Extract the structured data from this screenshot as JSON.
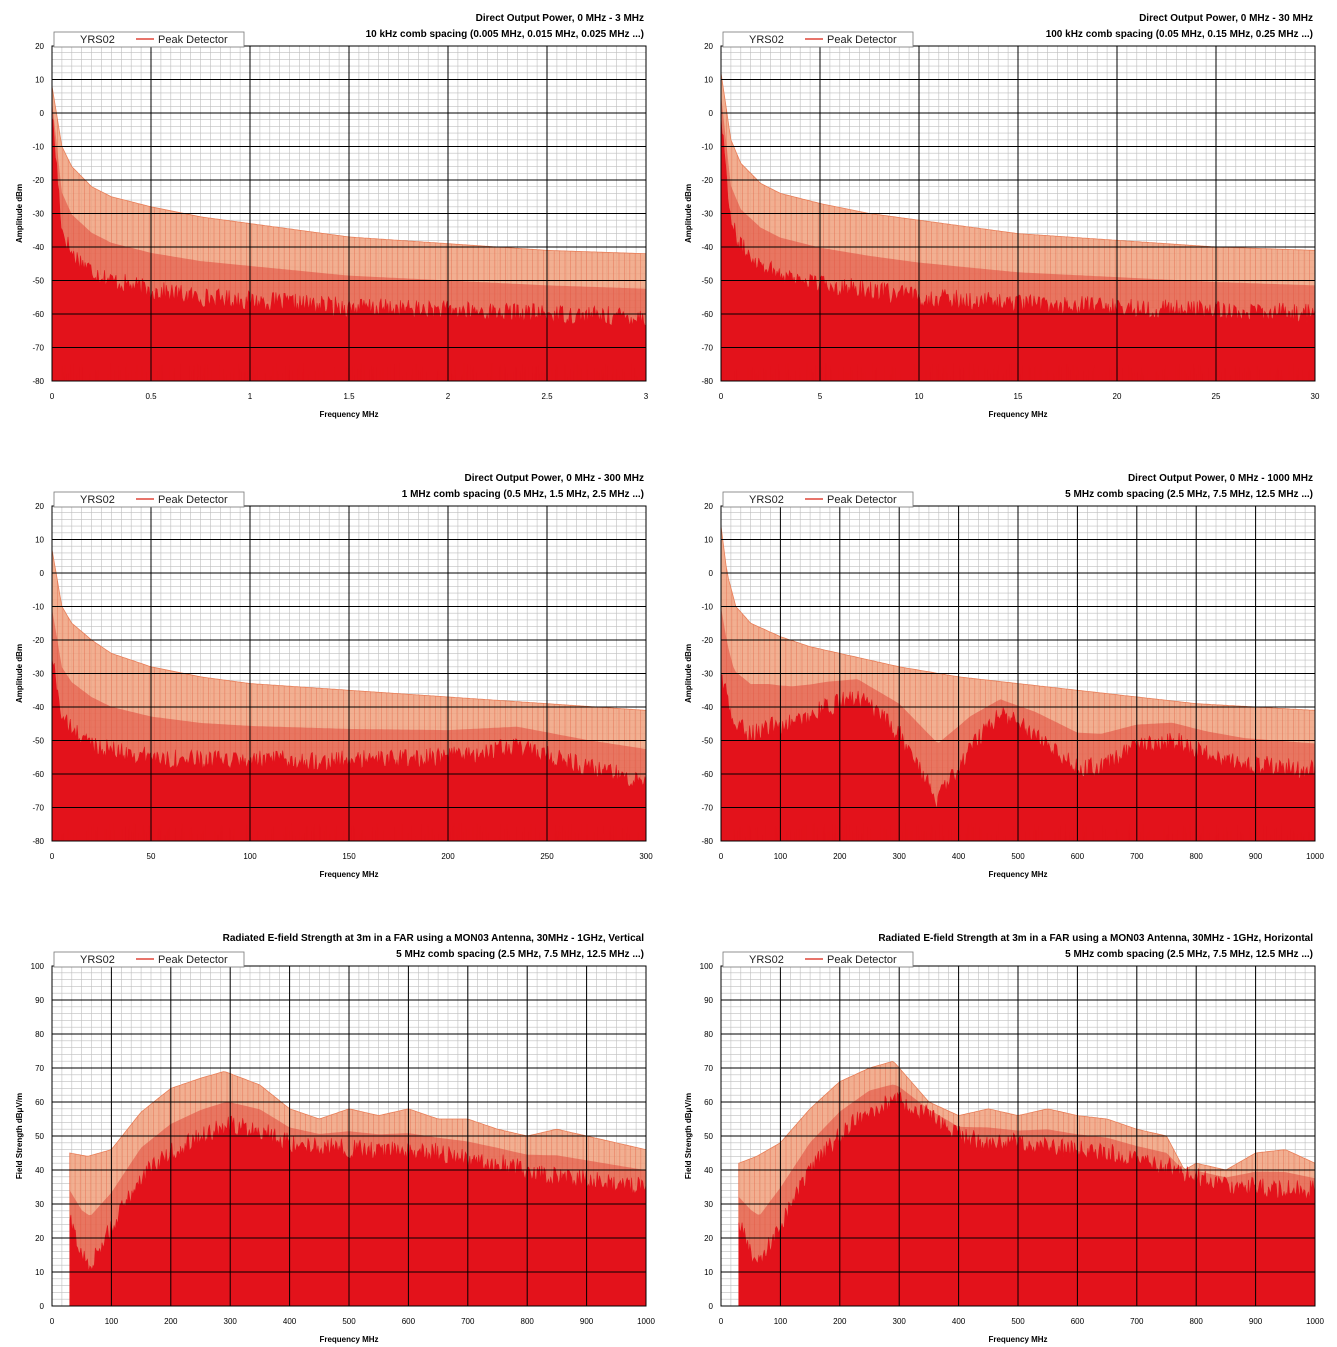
{
  "colors": {
    "background": "#ffffff",
    "grid_major": "#000000",
    "grid_minor": "#bfbfbf",
    "peak": "#f0a17e",
    "average": "#e0473a",
    "yrs": "#e3121b"
  },
  "chart_data": [
    {
      "type": "area",
      "title": "Direct Output Power, 0 MHz - 3 MHz",
      "subtitle": "10 kHz comb spacing (0.005 MHz, 0.015 MHz, 0.025 MHz ...)",
      "xlabel": "Frequency MHz",
      "ylabel": "Amplitude dBm",
      "xlim": [
        0,
        3
      ],
      "ylim": [
        -80,
        20
      ],
      "xticks": [
        0,
        0.5,
        1,
        1.5,
        2,
        2.5,
        3
      ],
      "xtick_labels": [
        "0",
        "0.5",
        "1",
        "1.5",
        "2",
        "2.5",
        "3"
      ],
      "yticks": [
        20,
        10,
        0,
        -10,
        -20,
        -30,
        -40,
        -50,
        -60,
        -70,
        -80
      ],
      "grid": true,
      "legend": {
        "position": "top-left",
        "entries": [
          "YRS02",
          "Peak Detector"
        ]
      },
      "series": [
        {
          "name": "Peak Detector",
          "x": [
            0,
            0.05,
            0.1,
            0.2,
            0.3,
            0.5,
            0.75,
            1,
            1.25,
            1.5,
            2,
            2.5,
            3
          ],
          "values": [
            8,
            -10,
            -16,
            -22,
            -25,
            -28,
            -31,
            -33,
            -35,
            -37,
            -39,
            -41,
            -42
          ]
        },
        {
          "name": "YRS02",
          "x": [
            0,
            0.05,
            0.1,
            0.2,
            0.3,
            0.5,
            0.75,
            1,
            1.25,
            1.5,
            2,
            2.5,
            3
          ],
          "values": [
            0,
            -35,
            -42,
            -47,
            -50,
            -53,
            -55,
            -56,
            -57,
            -58,
            -59,
            -60,
            -61
          ]
        }
      ]
    },
    {
      "type": "area",
      "title": "Direct Output Power, 0 MHz - 30 MHz",
      "subtitle": "100 kHz comb spacing (0.05 MHz, 0.15 MHz, 0.25 MHz ...)",
      "xlabel": "Frequency MHz",
      "ylabel": "Amplitude dBm",
      "xlim": [
        0,
        30
      ],
      "ylim": [
        -80,
        20
      ],
      "xticks": [
        0,
        5,
        10,
        15,
        20,
        25,
        30
      ],
      "xtick_labels": [
        "0",
        "5",
        "10",
        "15",
        "20",
        "25",
        "30"
      ],
      "yticks": [
        20,
        10,
        0,
        -10,
        -20,
        -30,
        -40,
        -50,
        -60,
        -70,
        -80
      ],
      "grid": true,
      "legend": {
        "position": "top-left",
        "entries": [
          "YRS02",
          "Peak Detector"
        ]
      },
      "series": [
        {
          "name": "Peak Detector",
          "x": [
            0,
            0.5,
            1,
            2,
            3,
            5,
            7.5,
            10,
            12.5,
            15,
            20,
            25,
            30
          ],
          "values": [
            12,
            -8,
            -15,
            -21,
            -24,
            -27,
            -30,
            -32,
            -34,
            -36,
            -38,
            -40,
            -41
          ]
        },
        {
          "name": "YRS02",
          "x": [
            0,
            0.5,
            1,
            2,
            3,
            5,
            7.5,
            10,
            12.5,
            15,
            20,
            25,
            30
          ],
          "values": [
            0,
            -33,
            -40,
            -45,
            -48,
            -51,
            -53,
            -55,
            -56,
            -57,
            -58,
            -59,
            -60
          ]
        }
      ]
    },
    {
      "type": "area",
      "title": "Direct Output Power, 0 MHz - 300 MHz",
      "subtitle": "1 MHz comb spacing (0.5 MHz, 1.5 MHz, 2.5 MHz ...)",
      "xlabel": "Frequency MHz",
      "ylabel": "Amplitude dBm",
      "xlim": [
        0,
        300
      ],
      "ylim": [
        -80,
        20
      ],
      "xticks": [
        0,
        50,
        100,
        150,
        200,
        250,
        300
      ],
      "xtick_labels": [
        "0",
        "50",
        "100",
        "150",
        "200",
        "250",
        "300"
      ],
      "yticks": [
        20,
        10,
        0,
        -10,
        -20,
        -30,
        -40,
        -50,
        -60,
        -70,
        -80
      ],
      "grid": true,
      "legend": {
        "position": "top-left",
        "entries": [
          "YRS02",
          "Peak Detector"
        ]
      },
      "series": [
        {
          "name": "Peak Detector",
          "x": [
            0,
            5,
            10,
            20,
            30,
            50,
            75,
            100,
            150,
            200,
            250,
            300
          ],
          "values": [
            7,
            -10,
            -15,
            -20,
            -24,
            -28,
            -31,
            -33,
            -35,
            -37,
            -39,
            -41
          ]
        },
        {
          "name": "YRS02",
          "x": [
            0,
            5,
            10,
            20,
            30,
            50,
            75,
            100,
            150,
            200,
            235,
            270,
            300
          ],
          "values": [
            -25,
            -43,
            -47,
            -51,
            -53,
            -55,
            -56,
            -56,
            -56,
            -55,
            -52,
            -58,
            -62
          ]
        }
      ]
    },
    {
      "type": "area",
      "title": "Direct Output Power, 0 MHz - 1000 MHz",
      "subtitle": "5 MHz comb spacing (2.5 MHz, 7.5 MHz, 12.5 MHz ...)",
      "xlabel": "Frequency MHz",
      "ylabel": "Amplitude dBm",
      "xlim": [
        0,
        1000
      ],
      "ylim": [
        -80,
        20
      ],
      "xticks": [
        0,
        100,
        200,
        300,
        400,
        500,
        600,
        700,
        800,
        900,
        1000
      ],
      "xtick_labels": [
        "0",
        "100",
        "200",
        "300",
        "400",
        "500",
        "600",
        "700",
        "800",
        "900",
        "1000"
      ],
      "yticks": [
        20,
        10,
        0,
        -10,
        -20,
        -30,
        -40,
        -50,
        -60,
        -70,
        -80
      ],
      "grid": true,
      "legend": {
        "position": "top-left",
        "entries": [
          "YRS02",
          "Peak Detector"
        ]
      },
      "series": [
        {
          "name": "Peak Detector",
          "x": [
            0,
            10,
            25,
            50,
            100,
            150,
            200,
            300,
            400,
            500,
            600,
            700,
            800,
            900,
            1000
          ],
          "values": [
            14,
            0,
            -10,
            -15,
            -19,
            -22,
            -24,
            -28,
            -31,
            -33,
            -35,
            -37,
            -39,
            -40,
            -41
          ]
        },
        {
          "name": "YRS02",
          "x": [
            0,
            20,
            50,
            80,
            120,
            180,
            230,
            300,
            365,
            420,
            470,
            530,
            600,
            640,
            700,
            760,
            820,
            880,
            940,
            1000
          ],
          "values": [
            -30,
            -45,
            -48,
            -46,
            -45,
            -40,
            -37,
            -48,
            -68,
            -52,
            -42,
            -48,
            -58,
            -58,
            -52,
            -50,
            -54,
            -57,
            -58,
            -59
          ]
        }
      ]
    },
    {
      "type": "area",
      "title": "Radiated E-field Strength at 3m in a FAR using a MON03 Antenna, 30MHz - 1GHz, Vertical",
      "subtitle": "5 MHz comb spacing (2.5 MHz, 7.5 MHz, 12.5 MHz ...)",
      "xlabel": "Frequency MHz",
      "ylabel": "Field Strength dBμV/m",
      "xlim": [
        0,
        1000
      ],
      "ylim": [
        0,
        100
      ],
      "xticks": [
        0,
        100,
        200,
        300,
        400,
        500,
        600,
        700,
        800,
        900,
        1000
      ],
      "xtick_labels": [
        "0",
        "100",
        "200",
        "300",
        "400",
        "500",
        "600",
        "700",
        "800",
        "900",
        "1000"
      ],
      "yticks": [
        100,
        90,
        80,
        70,
        60,
        50,
        40,
        30,
        20,
        10,
        0
      ],
      "grid": true,
      "legend": {
        "position": "top-left",
        "entries": [
          "YRS02",
          "Peak Detector"
        ]
      },
      "series": [
        {
          "name": "Peak Detector",
          "x": [
            30,
            60,
            100,
            150,
            200,
            250,
            290,
            350,
            400,
            450,
            500,
            550,
            600,
            650,
            700,
            750,
            800,
            850,
            900,
            950,
            1000
          ],
          "values": [
            45,
            44,
            46,
            57,
            64,
            67,
            69,
            65,
            58,
            55,
            58,
            56,
            58,
            55,
            55,
            52,
            50,
            52,
            50,
            48,
            46
          ]
        },
        {
          "name": "YRS02",
          "x": [
            30,
            50,
            65,
            100,
            150,
            200,
            250,
            300,
            350,
            400,
            450,
            500,
            550,
            600,
            650,
            700,
            750,
            800,
            850,
            900,
            950,
            1000
          ],
          "values": [
            25,
            15,
            12,
            23,
            38,
            45,
            50,
            53,
            52,
            48,
            47,
            46,
            46,
            45,
            45,
            43,
            42,
            40,
            38,
            37,
            36,
            35
          ]
        }
      ]
    },
    {
      "type": "area",
      "title": "Radiated E-field Strength at 3m in a FAR using a MON03 Antenna, 30MHz - 1GHz, Horizontal",
      "subtitle": "5 MHz comb spacing (2.5 MHz, 7.5 MHz, 12.5 MHz ...)",
      "xlabel": "Frequency MHz",
      "ylabel": "Field Strength dBμV/m",
      "xlim": [
        0,
        1000
      ],
      "ylim": [
        0,
        100
      ],
      "xticks": [
        0,
        100,
        200,
        300,
        400,
        500,
        600,
        700,
        800,
        900,
        1000
      ],
      "xtick_labels": [
        "0",
        "100",
        "200",
        "300",
        "400",
        "500",
        "600",
        "700",
        "800",
        "900",
        "1000"
      ],
      "yticks": [
        100,
        90,
        80,
        70,
        60,
        50,
        40,
        30,
        20,
        10,
        0
      ],
      "grid": true,
      "legend": {
        "position": "top-left",
        "entries": [
          "YRS02",
          "Peak Detector"
        ]
      },
      "series": [
        {
          "name": "Peak Detector",
          "x": [
            30,
            60,
            100,
            150,
            200,
            250,
            290,
            320,
            350,
            400,
            450,
            500,
            550,
            600,
            650,
            700,
            750,
            780,
            800,
            850,
            900,
            950,
            1000
          ],
          "values": [
            42,
            44,
            48,
            58,
            66,
            70,
            72,
            66,
            60,
            56,
            58,
            56,
            58,
            56,
            55,
            52,
            50,
            40,
            42,
            40,
            45,
            46,
            42
          ]
        },
        {
          "name": "YRS02",
          "x": [
            30,
            50,
            65,
            100,
            150,
            200,
            250,
            300,
            350,
            400,
            450,
            500,
            550,
            600,
            650,
            700,
            750,
            800,
            850,
            900,
            950,
            1000
          ],
          "values": [
            24,
            16,
            12,
            24,
            40,
            50,
            58,
            60,
            56,
            50,
            48,
            48,
            47,
            46,
            45,
            43,
            41,
            38,
            36,
            35,
            34,
            34
          ]
        }
      ]
    }
  ]
}
